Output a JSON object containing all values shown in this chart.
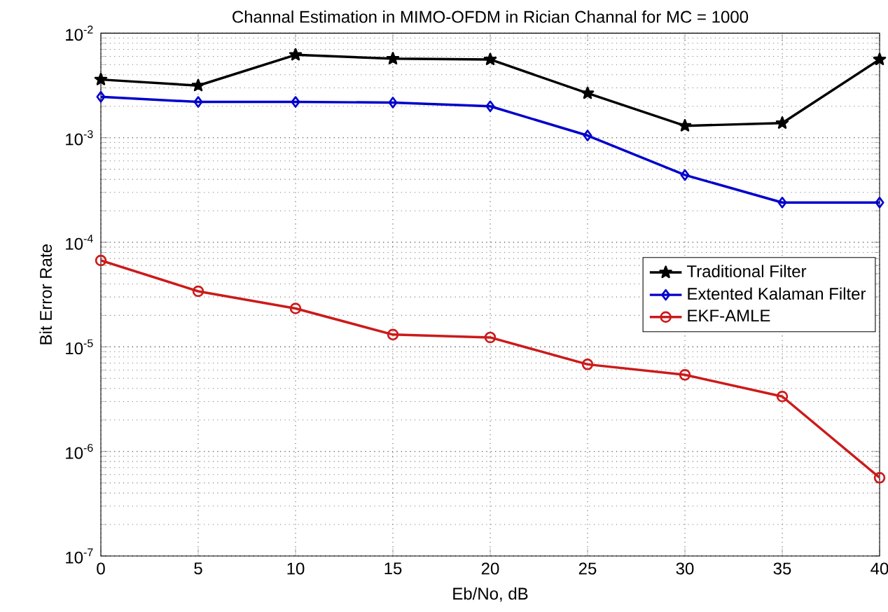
{
  "chart_data": {
    "type": "line",
    "title": "Channal Estimation in MIMO-OFDM in Rician Channal for MC = 1000",
    "xlabel": "Eb/No, dB",
    "ylabel": "Bit Error Rate",
    "x": [
      0,
      5,
      10,
      15,
      20,
      25,
      30,
      35,
      40
    ],
    "series": [
      {
        "name": "Traditional Filter",
        "color": "#000000",
        "marker": "star",
        "values": [
          0.0036,
          0.00315,
          0.0062,
          0.0057,
          0.0056,
          0.00266,
          0.0013,
          0.00138,
          0.0056
        ]
      },
      {
        "name": "Extented Kalaman Filter",
        "color": "#0000cc",
        "marker": "diamond",
        "values": [
          0.00246,
          0.0022,
          0.0022,
          0.00217,
          0.002,
          0.00105,
          0.00044,
          0.00024,
          0.00024
        ]
      },
      {
        "name": "EKF-AMLE",
        "color": "#cc1a1a",
        "marker": "circle",
        "values": [
          6.7e-05,
          3.4e-05,
          2.33e-05,
          1.31e-05,
          1.23e-05,
          6.8e-06,
          5.4e-06,
          3.35e-06,
          5.6e-07
        ]
      }
    ],
    "log": "y",
    "xlim": [
      0,
      40
    ],
    "ylim": [
      1e-07,
      0.01
    ],
    "xticks": [
      0,
      5,
      10,
      15,
      20,
      25,
      30,
      35,
      40
    ],
    "yticks": [
      {
        "value": 1e-07,
        "label": "10$^{-7}$"
      },
      {
        "value": 1e-06,
        "label": "10$^{-6}$"
      },
      {
        "value": 1e-05,
        "label": "10$^{-5}$"
      },
      {
        "value": 0.0001,
        "label": "10$^{-4}$"
      },
      {
        "value": 0.001,
        "label": "10$^{-3}$"
      },
      {
        "value": 0.01,
        "label": "10$^{-2}$"
      }
    ],
    "grid": true,
    "legend": "right",
    "line_style": "solid"
  }
}
